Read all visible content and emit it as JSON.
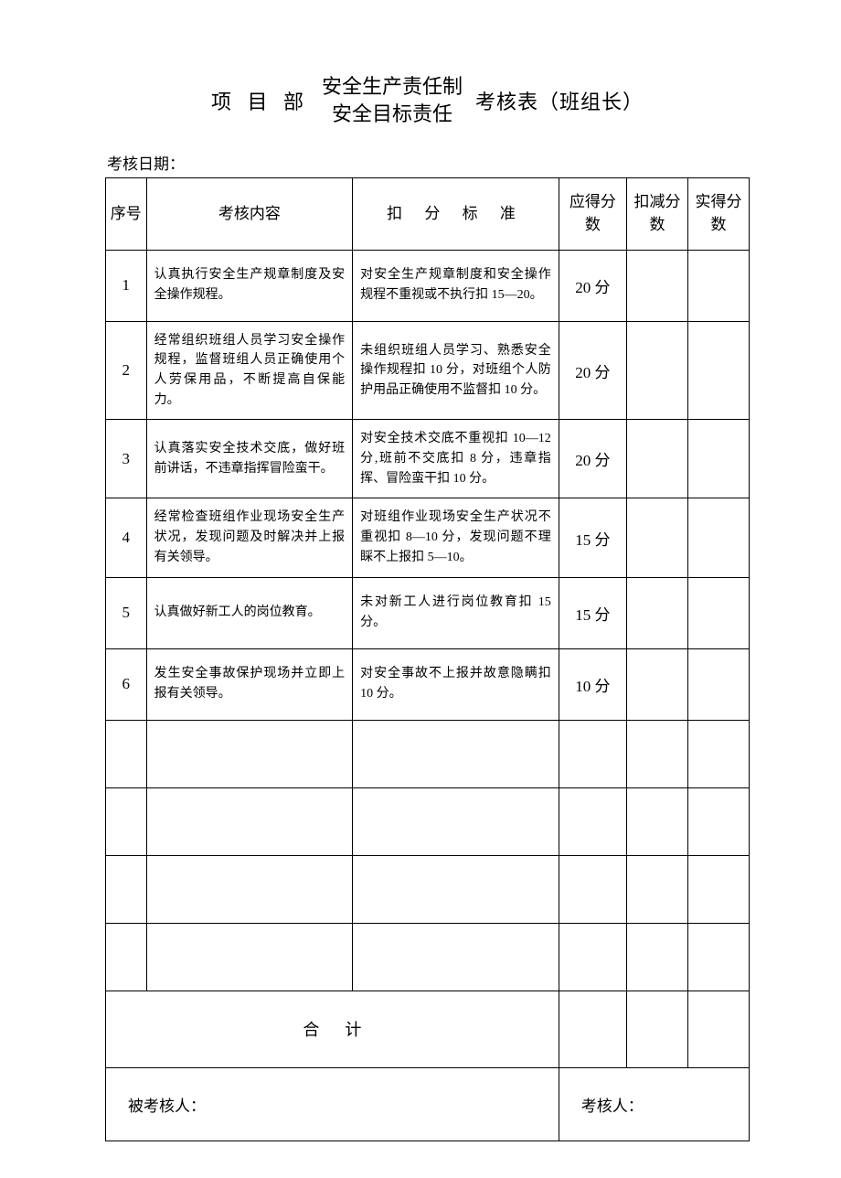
{
  "title": {
    "left": "项 目 部",
    "mid_top": "安全生产责任制",
    "mid_bottom": "安全目标责任",
    "right": "考核表（班组长）"
  },
  "date_label": "考核日期：",
  "headers": {
    "idx": "序号",
    "content": "考核内容",
    "criteria": "扣  分  标  准",
    "score": "应得分数",
    "deduct": "扣减分数",
    "actual": "实得分数"
  },
  "rows": [
    {
      "idx": "1",
      "content": "认真执行安全生产规章制度及安全操作规程。",
      "criteria": "对安全生产规章制度和安全操作规程不重视或不执行扣 15—20。",
      "score": "20 分"
    },
    {
      "idx": "2",
      "content": "经常组织班组人员学习安全操作规程，监督班组人员正确使用个人劳保用品，不断提高自保能力。",
      "criteria": "未组织班组人员学习、熟悉安全操作规程扣 10 分，对班组个人防护用品正确使用不监督扣 10 分。",
      "score": "20 分"
    },
    {
      "idx": "3",
      "content": "认真落实安全技术交底，做好班前讲话，不违章指挥冒险蛮干。",
      "criteria": "对安全技术交底不重视扣 10—12 分,班前不交底扣 8 分，违章指挥、冒险蛮干扣 10 分。",
      "score": "20 分"
    },
    {
      "idx": "4",
      "content": " 经常检查班组作业现场安全生产状况，发现问题及时解决并上报有关领导。",
      "criteria": "对班组作业现场安全生产状况不重视扣 8—10 分，发现问题不理睬不上报扣 5—10。",
      "score": "15 分"
    },
    {
      "idx": "5",
      "content": "认真做好新工人的岗位教育。",
      "criteria": "未对新工人进行岗位教育扣 15 分。",
      "score": "15 分"
    },
    {
      "idx": "6",
      "content": "发生安全事故保护现场并立即上报有关领导。",
      "criteria": "对安全事故不上报并故意隐瞒扣 10 分。",
      "score": "10 分"
    }
  ],
  "empty_rows": 4,
  "total_label": "合计",
  "footer": {
    "assessee": "被考核人：",
    "assessor": "考核人："
  }
}
